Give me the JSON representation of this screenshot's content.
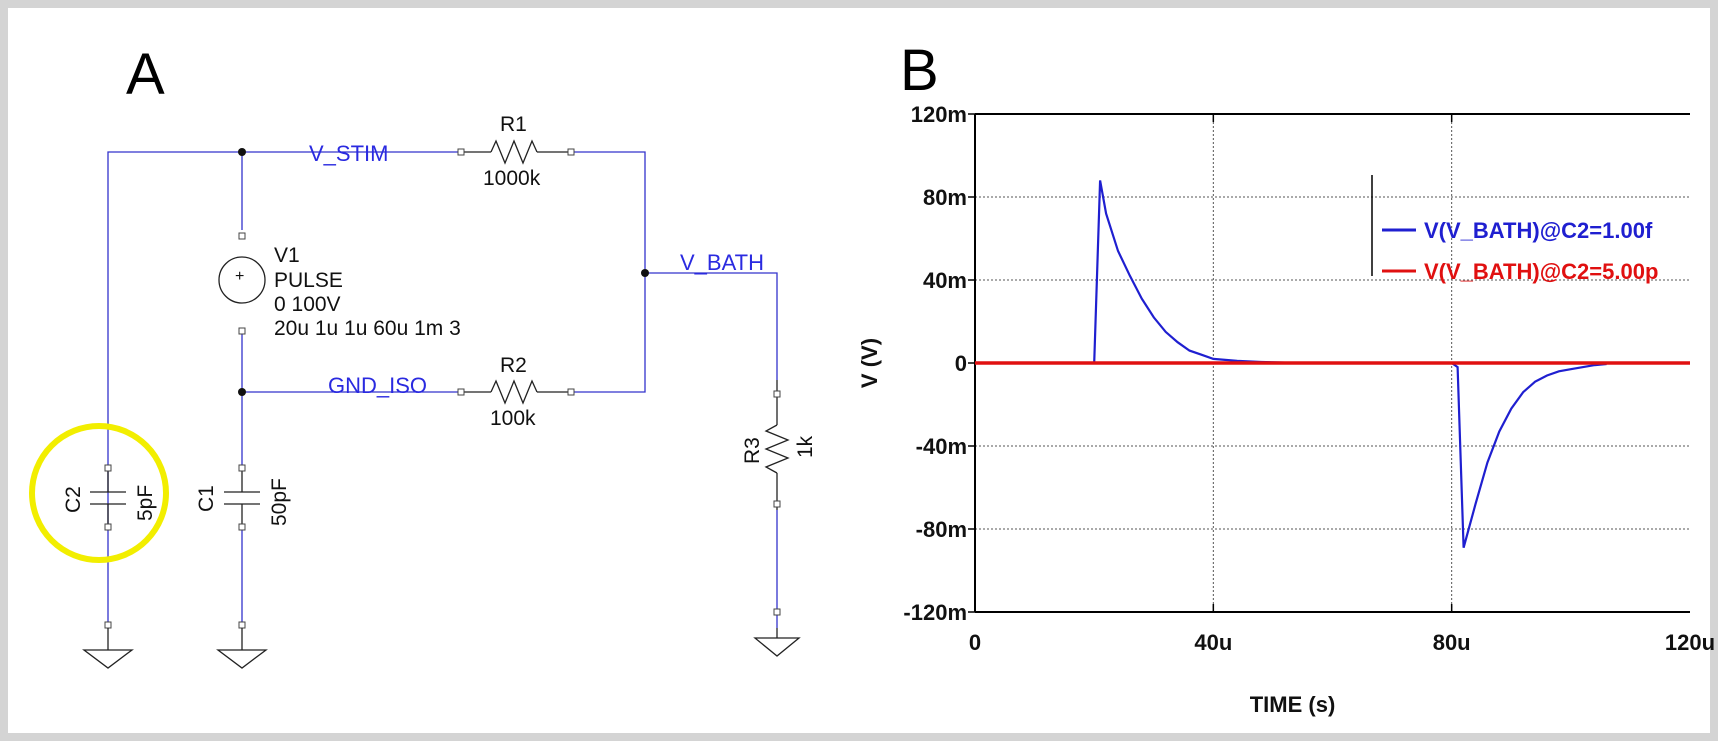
{
  "panel_labels": {
    "a": "A",
    "b": "B"
  },
  "schematic": {
    "nets": {
      "v_stim": "V_STIM",
      "v_bath": "V_BATH",
      "gnd_iso": "GND_ISO"
    },
    "r1": {
      "ref": "R1",
      "value": "1000k"
    },
    "r2": {
      "ref": "R2",
      "value": "100k"
    },
    "r3": {
      "ref": "R3",
      "value": "1k"
    },
    "c1": {
      "ref": "C1",
      "value": "50pF"
    },
    "c2": {
      "ref": "C2",
      "value": "5pF"
    },
    "v1": {
      "ref": "V1",
      "type": "PULSE",
      "line1": "0 100V",
      "line2": "20u 1u 1u 60u 1m 3",
      "plus": "+"
    },
    "colors": {
      "wire": "#3333cc",
      "highlight": "#f2ee00"
    }
  },
  "chart_data": {
    "type": "line",
    "xlabel": "TIME (s)",
    "ylabel": "V (V)",
    "xlim": [
      0,
      0.00012
    ],
    "ylim": [
      -0.12,
      0.12
    ],
    "x_ticks": [
      {
        "value": 0,
        "label": "0"
      },
      {
        "value": 4e-05,
        "label": "40u"
      },
      {
        "value": 8e-05,
        "label": "80u"
      },
      {
        "value": 0.00012,
        "label": "120u"
      }
    ],
    "y_ticks": [
      {
        "value": 0.12,
        "label": "120m"
      },
      {
        "value": 0.08,
        "label": "80m"
      },
      {
        "value": 0.04,
        "label": "40m"
      },
      {
        "value": 0,
        "label": "0"
      },
      {
        "value": -0.04,
        "label": "-40m"
      },
      {
        "value": -0.08,
        "label": "-80m"
      },
      {
        "value": -0.12,
        "label": "-120m"
      }
    ],
    "grid": true,
    "legend_position": "top-right",
    "series": [
      {
        "name": "V(V_BATH)@C2=1.00f",
        "color": "#1f1fd0",
        "x": [
          0,
          2e-05,
          2.1e-05,
          2.2e-05,
          2.4e-05,
          2.6e-05,
          2.8e-05,
          3e-05,
          3.2e-05,
          3.4e-05,
          3.6e-05,
          3.8e-05,
          4e-05,
          4.4e-05,
          4.8e-05,
          5.2e-05,
          8e-05,
          8.1e-05,
          8.2e-05,
          8.4e-05,
          8.6e-05,
          8.8e-05,
          9e-05,
          9.2e-05,
          9.4e-05,
          9.6e-05,
          9.8e-05,
          0.0001,
          0.000104,
          0.000106
        ],
        "y": [
          0,
          0,
          0.088,
          0.072,
          0.054,
          0.042,
          0.031,
          0.022,
          0.015,
          0.01,
          0.006,
          0.004,
          0.002,
          0.001,
          0.0005,
          0.0002,
          0,
          -0.002,
          -0.089,
          -0.068,
          -0.048,
          -0.033,
          -0.022,
          -0.014,
          -0.009,
          -0.006,
          -0.004,
          -0.003,
          -0.001,
          -0.0005
        ]
      },
      {
        "name": "V(V_BATH)@C2=5.00p",
        "color": "#e01010",
        "x": [
          0,
          0.00012
        ],
        "y": [
          0,
          0
        ]
      }
    ]
  }
}
